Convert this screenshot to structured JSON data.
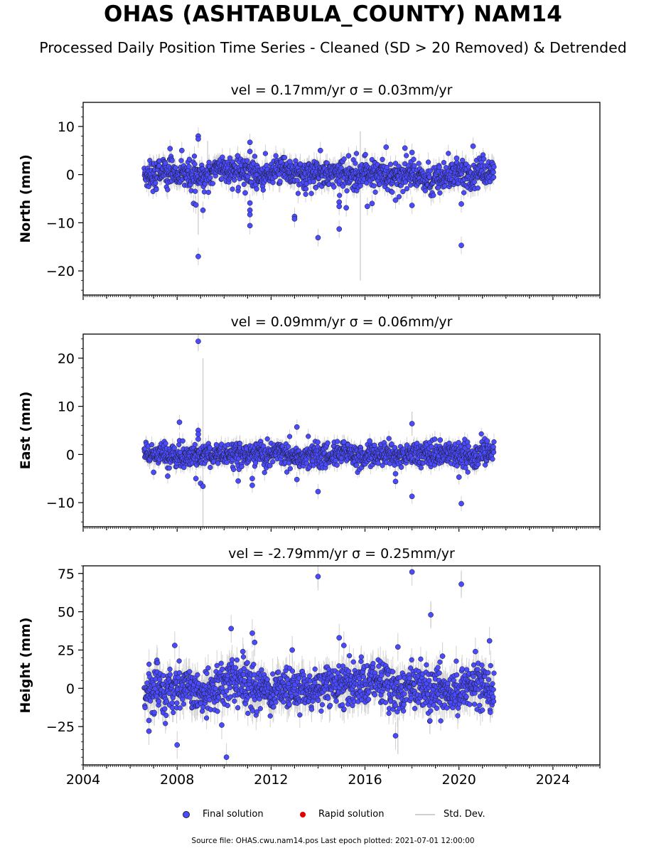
{
  "title": "OHAS (ASHTABULA_COUNTY) NAM14",
  "subtitle": "Processed Daily Position Time Series - Cleaned (SD > 20 Removed) & Detrended",
  "legend": {
    "final": "Final solution",
    "rapid": "Rapid solution",
    "std": "Std. Dev."
  },
  "colors": {
    "final": "#4a4aff",
    "rapid": "#e00000",
    "std": "#d0d0d0"
  },
  "footer": "Source file: OHAS.cwu.nam14.pos  Last epoch plotted: 2021-07-01 12:00:00",
  "chart_data": [
    {
      "type": "scatter",
      "panel": "north",
      "title": "vel = 0.17mm/yr   σ = 0.03mm/yr",
      "ylabel": "North (mm)",
      "xlim": [
        2004,
        2026
      ],
      "ylim": [
        -25,
        15
      ],
      "x_ticks": [
        2004,
        2008,
        2012,
        2016,
        2020,
        2024
      ],
      "y_ticks": [
        -20,
        -10,
        0,
        10
      ],
      "y_tick_labels": [
        "−20",
        "−10",
        "0",
        "10"
      ],
      "data_range": [
        2006.6,
        2021.5
      ],
      "noise_sd": 1.4,
      "outliers": [
        {
          "x": 2008.9,
          "y": 8.0
        },
        {
          "x": 2008.9,
          "y": 7.4
        },
        {
          "x": 2008.9,
          "y": -17.0
        },
        {
          "x": 2008.7,
          "y": -6.0
        },
        {
          "x": 2008.8,
          "y": -6.3
        },
        {
          "x": 2009.1,
          "y": -7.4
        },
        {
          "x": 2007.7,
          "y": 5.4
        },
        {
          "x": 2008.2,
          "y": 5.0
        },
        {
          "x": 2011.1,
          "y": 6.7
        },
        {
          "x": 2011.1,
          "y": 4.8
        },
        {
          "x": 2011.1,
          "y": -5.9
        },
        {
          "x": 2011.1,
          "y": -7.4
        },
        {
          "x": 2011.1,
          "y": -8.3
        },
        {
          "x": 2011.1,
          "y": -10.6
        },
        {
          "x": 2013.0,
          "y": -8.7
        },
        {
          "x": 2013.0,
          "y": -9.2
        },
        {
          "x": 2014.0,
          "y": -13.1
        },
        {
          "x": 2014.1,
          "y": 5.0
        },
        {
          "x": 2014.9,
          "y": -11.3
        },
        {
          "x": 2014.9,
          "y": -5.7
        },
        {
          "x": 2014.9,
          "y": -6.6
        },
        {
          "x": 2015.2,
          "y": -6.9
        },
        {
          "x": 2016.1,
          "y": -6.6
        },
        {
          "x": 2016.3,
          "y": -6.0
        },
        {
          "x": 2016.9,
          "y": 5.7
        },
        {
          "x": 2017.3,
          "y": -5.3
        },
        {
          "x": 2017.7,
          "y": 5.5
        },
        {
          "x": 2018.0,
          "y": 4.6
        },
        {
          "x": 2018.0,
          "y": -6.4
        },
        {
          "x": 2019.9,
          "y": 3.4
        },
        {
          "x": 2020.1,
          "y": -6.1
        },
        {
          "x": 2020.1,
          "y": -14.7
        },
        {
          "x": 2020.6,
          "y": 5.9
        },
        {
          "x": 2015.3,
          "y": 3.9
        },
        {
          "x": 2010.9,
          "y": -3.8
        },
        {
          "x": 2012.8,
          "y": 2.7
        }
      ],
      "errorbar_spikes": [
        {
          "x": 2015.8,
          "y": -6.5,
          "sd": 15.5
        },
        {
          "x": 2008.9,
          "y": -7.0,
          "sd": 5.5
        },
        {
          "x": 2009.3,
          "y": 2.0,
          "sd": 5.0
        }
      ]
    },
    {
      "type": "scatter",
      "panel": "east",
      "title": "vel = 0.09mm/yr   σ = 0.06mm/yr",
      "ylabel": "East (mm)",
      "xlim": [
        2004,
        2026
      ],
      "ylim": [
        -15,
        25
      ],
      "x_ticks": [
        2004,
        2008,
        2012,
        2016,
        2020,
        2024
      ],
      "y_ticks": [
        -10,
        0,
        10,
        20
      ],
      "y_tick_labels": [
        "−10",
        "0",
        "10",
        "20"
      ],
      "data_range": [
        2006.6,
        2021.5
      ],
      "noise_sd": 1.2,
      "outliers": [
        {
          "x": 2008.9,
          "y": 23.5
        },
        {
          "x": 2008.9,
          "y": 5.0
        },
        {
          "x": 2008.9,
          "y": 4.2
        },
        {
          "x": 2008.9,
          "y": 3.2
        },
        {
          "x": 2008.1,
          "y": 6.7
        },
        {
          "x": 2008.8,
          "y": -5.0
        },
        {
          "x": 2009.0,
          "y": -6.0
        },
        {
          "x": 2009.1,
          "y": -6.6
        },
        {
          "x": 2007.6,
          "y": -4.5
        },
        {
          "x": 2007.0,
          "y": -3.7
        },
        {
          "x": 2010.6,
          "y": -5.5
        },
        {
          "x": 2011.2,
          "y": -6.4
        },
        {
          "x": 2011.2,
          "y": -5.0
        },
        {
          "x": 2013.1,
          "y": 5.7
        },
        {
          "x": 2013.1,
          "y": -5.2
        },
        {
          "x": 2014.0,
          "y": -7.7
        },
        {
          "x": 2015.1,
          "y": 2.6
        },
        {
          "x": 2016.2,
          "y": 2.8
        },
        {
          "x": 2017.3,
          "y": -5.6
        },
        {
          "x": 2017.3,
          "y": -4.0
        },
        {
          "x": 2018.0,
          "y": 6.4
        },
        {
          "x": 2018.0,
          "y": -8.7
        },
        {
          "x": 2020.1,
          "y": -10.2
        },
        {
          "x": 2020.0,
          "y": -4.7
        },
        {
          "x": 2019.2,
          "y": 3.0
        },
        {
          "x": 2021.2,
          "y": 2.8
        }
      ],
      "errorbar_spikes": [
        {
          "x": 2009.1,
          "y": 2.5,
          "sd": 17.5
        },
        {
          "x": 2008.9,
          "y": 23.5,
          "sd": 2.0
        },
        {
          "x": 2018.0,
          "y": 6.4,
          "sd": 2.5
        }
      ]
    },
    {
      "type": "scatter",
      "panel": "height",
      "title": "vel = -2.79mm/yr   σ = 0.25mm/yr",
      "ylabel": "Height (mm)",
      "xlim": [
        2004,
        2026
      ],
      "ylim": [
        -50,
        80
      ],
      "x_ticks": [
        2004,
        2008,
        2012,
        2016,
        2020,
        2024
      ],
      "x_tick_labels": [
        "2004",
        "2008",
        "2012",
        "2016",
        "2020",
        "2024"
      ],
      "y_ticks": [
        -25,
        0,
        25,
        50,
        75
      ],
      "y_tick_labels": [
        "−25",
        "0",
        "25",
        "50",
        "75"
      ],
      "data_range": [
        2006.6,
        2021.5
      ],
      "noise_sd": 7.0,
      "outliers": [
        {
          "x": 2014.0,
          "y": 73
        },
        {
          "x": 2018.0,
          "y": 76
        },
        {
          "x": 2020.1,
          "y": 68
        },
        {
          "x": 2018.8,
          "y": 48
        },
        {
          "x": 2010.3,
          "y": 39
        },
        {
          "x": 2011.2,
          "y": 36
        },
        {
          "x": 2011.3,
          "y": 30
        },
        {
          "x": 2014.9,
          "y": 33
        },
        {
          "x": 2015.1,
          "y": 28
        },
        {
          "x": 2017.4,
          "y": 27
        },
        {
          "x": 2007.9,
          "y": 28
        },
        {
          "x": 2021.3,
          "y": 31
        },
        {
          "x": 2008.0,
          "y": -37
        },
        {
          "x": 2010.1,
          "y": -45
        },
        {
          "x": 2017.3,
          "y": -31
        },
        {
          "x": 2006.8,
          "y": -28
        },
        {
          "x": 2006.8,
          "y": -21
        },
        {
          "x": 2009.9,
          "y": -24
        },
        {
          "x": 2012.9,
          "y": 25
        },
        {
          "x": 2020.7,
          "y": 24
        },
        {
          "x": 2010.8,
          "y": 24
        },
        {
          "x": 2019.3,
          "y": 21
        }
      ],
      "errorbar_spikes": [
        {
          "x": 2017.4,
          "y": -31,
          "sd": 12
        },
        {
          "x": 2014.0,
          "y": 73,
          "sd": 7
        },
        {
          "x": 2020.1,
          "y": 68,
          "sd": 8
        },
        {
          "x": 2018.8,
          "y": 48,
          "sd": 8
        }
      ]
    }
  ]
}
